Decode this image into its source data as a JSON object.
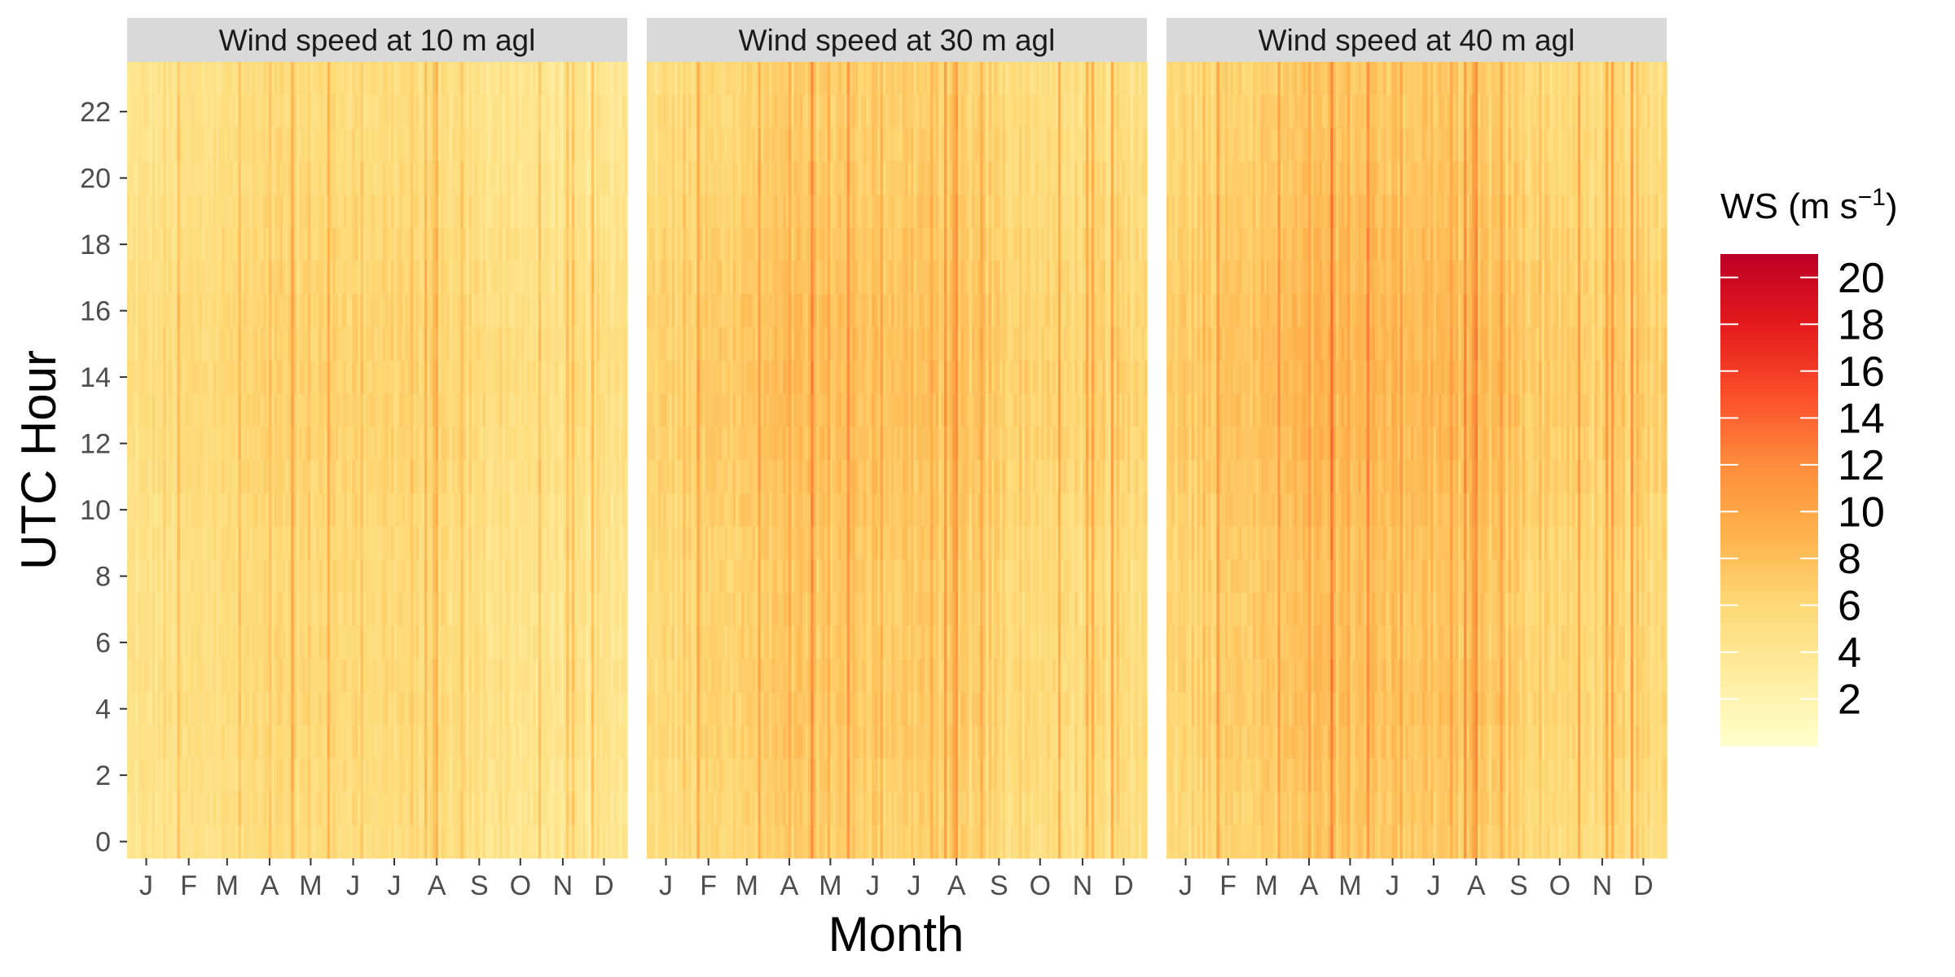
{
  "chart_data": {
    "type": "heatmap",
    "panels": [
      {
        "title": "Wind speed at 10 m agl",
        "level": 0.8
      },
      {
        "title": "Wind speed at 30 m agl",
        "level": 1.0
      },
      {
        "title": "Wind speed at 40 m agl",
        "level": 1.08
      }
    ],
    "xlabel": "Month",
    "ylabel": "UTC Hour",
    "x_ticks": [
      "J",
      "F",
      "M",
      "A",
      "M",
      "J",
      "J",
      "A",
      "S",
      "O",
      "N",
      "D"
    ],
    "y_ticks": [
      0,
      2,
      4,
      6,
      8,
      10,
      12,
      14,
      16,
      18,
      20,
      22
    ],
    "x_range_days": [
      1,
      366
    ],
    "y_range_hours": [
      -0.5,
      23.5
    ],
    "legend": {
      "title": "WS (m s",
      "title_exponent": "−1",
      "title_close": ")",
      "ticks": [
        2,
        4,
        6,
        8,
        10,
        12,
        14,
        16,
        18,
        20
      ],
      "range": [
        0,
        21
      ],
      "placement": "right"
    },
    "colorscale": [
      "#ffffcc",
      "#ffeda0",
      "#fed976",
      "#feb24c",
      "#fd8d3c",
      "#fc4e2a",
      "#e31a1c",
      "#bd0026"
    ],
    "background": "#ffffff",
    "strip_color": "#d9d9d9"
  }
}
